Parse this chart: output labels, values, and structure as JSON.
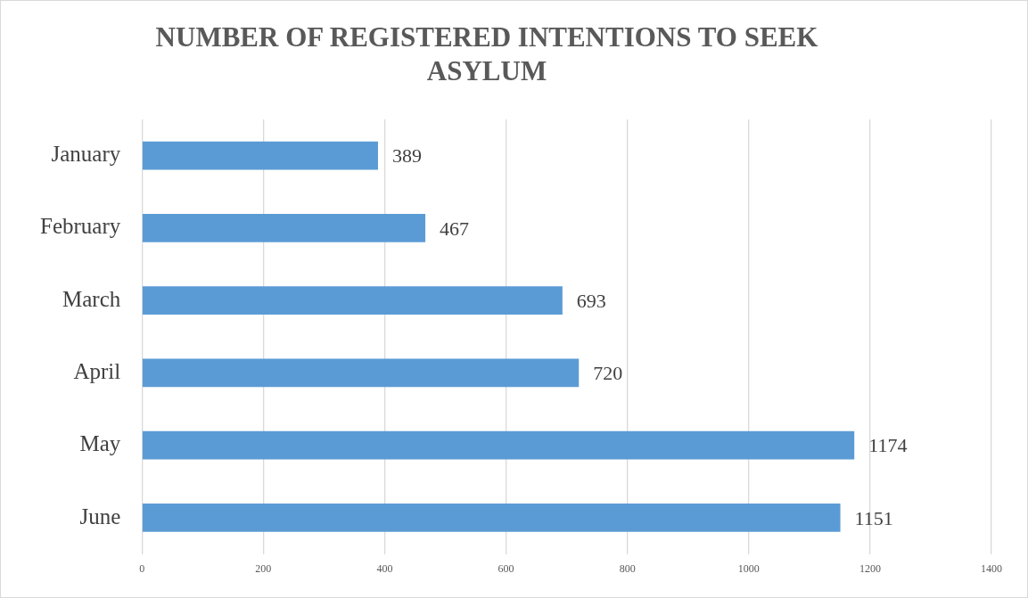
{
  "chart_data": {
    "type": "bar",
    "orientation": "horizontal",
    "title": "NUMBER OF REGISTERED INTENTIONS TO SEEK ASYLUM",
    "categories": [
      "January",
      "February",
      "March",
      "April",
      "May",
      "June"
    ],
    "values": [
      389,
      467,
      693,
      720,
      1174,
      1151
    ],
    "color": "#5b9bd5",
    "xlim": [
      0,
      1400
    ],
    "xticks": [
      0,
      200,
      400,
      600,
      800,
      1000,
      1200,
      1400
    ],
    "grid": "x",
    "data_labels": true
  }
}
